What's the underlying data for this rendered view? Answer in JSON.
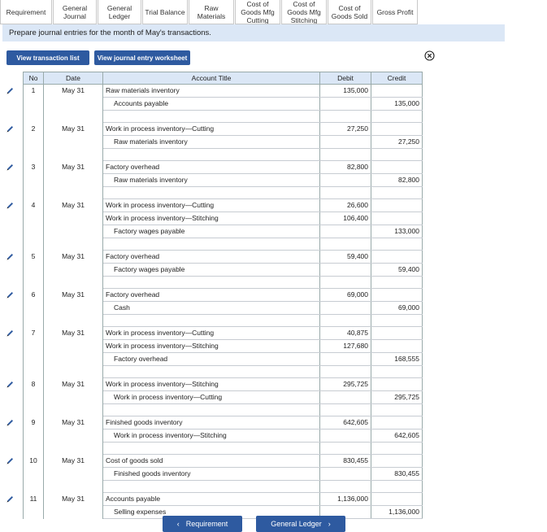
{
  "tabs": [
    {
      "label": "Requirement"
    },
    {
      "label": "General\nJournal"
    },
    {
      "label": "General\nLedger"
    },
    {
      "label": "Trial Balance"
    },
    {
      "label": "Raw\nMaterials"
    },
    {
      "label": "Cost of\nGoods Mfg\nCutting"
    },
    {
      "label": "Cost of\nGoods Mfg\nStitching"
    },
    {
      "label": "Cost of\nGoods Sold"
    },
    {
      "label": "Gross Profit"
    }
  ],
  "instruction": "Prepare journal entries for the month of May's transactions.",
  "buttons": {
    "view_transaction_list": "View transaction list",
    "view_journal_worksheet": "View journal entry worksheet"
  },
  "table": {
    "headers": {
      "no": "No",
      "date": "Date",
      "account": "Account Title",
      "debit": "Debit",
      "credit": "Credit"
    },
    "entries": [
      {
        "no": "1",
        "date": "May 31",
        "lines": [
          {
            "account": "Raw materials inventory",
            "debit": "135,000",
            "credit": "",
            "indent": false
          },
          {
            "account": "Accounts payable",
            "debit": "",
            "credit": "135,000",
            "indent": true
          }
        ]
      },
      {
        "no": "2",
        "date": "May 31",
        "lines": [
          {
            "account": "Work in process inventory—Cutting",
            "debit": "27,250",
            "credit": "",
            "indent": false
          },
          {
            "account": "Raw materials inventory",
            "debit": "",
            "credit": "27,250",
            "indent": true
          }
        ]
      },
      {
        "no": "3",
        "date": "May 31",
        "lines": [
          {
            "account": "Factory overhead",
            "debit": "82,800",
            "credit": "",
            "indent": false
          },
          {
            "account": "Raw materials inventory",
            "debit": "",
            "credit": "82,800",
            "indent": true
          }
        ]
      },
      {
        "no": "4",
        "date": "May 31",
        "lines": [
          {
            "account": "Work in process inventory—Cutting",
            "debit": "26,600",
            "credit": "",
            "indent": false
          },
          {
            "account": "Work in process inventory—Stitching",
            "debit": "106,400",
            "credit": "",
            "indent": false
          },
          {
            "account": "Factory wages payable",
            "debit": "",
            "credit": "133,000",
            "indent": true
          }
        ]
      },
      {
        "no": "5",
        "date": "May 31",
        "lines": [
          {
            "account": "Factory overhead",
            "debit": "59,400",
            "credit": "",
            "indent": false
          },
          {
            "account": "Factory wages payable",
            "debit": "",
            "credit": "59,400",
            "indent": true
          }
        ]
      },
      {
        "no": "6",
        "date": "May 31",
        "lines": [
          {
            "account": "Factory overhead",
            "debit": "69,000",
            "credit": "",
            "indent": false
          },
          {
            "account": "Cash",
            "debit": "",
            "credit": "69,000",
            "indent": true
          }
        ]
      },
      {
        "no": "7",
        "date": "May 31",
        "lines": [
          {
            "account": "Work in process inventory—Cutting",
            "debit": "40,875",
            "credit": "",
            "indent": false
          },
          {
            "account": "Work in process inventory—Stitching",
            "debit": "127,680",
            "credit": "",
            "indent": false
          },
          {
            "account": "Factory overhead",
            "debit": "",
            "credit": "168,555",
            "indent": true
          }
        ]
      },
      {
        "no": "8",
        "date": "May 31",
        "lines": [
          {
            "account": "Work in process inventory—Stitching",
            "debit": "295,725",
            "credit": "",
            "indent": false
          },
          {
            "account": "Work in process inventory—Cutting",
            "debit": "",
            "credit": "295,725",
            "indent": true
          }
        ]
      },
      {
        "no": "9",
        "date": "May 31",
        "lines": [
          {
            "account": "Finished goods inventory",
            "debit": "642,605",
            "credit": "",
            "indent": false
          },
          {
            "account": "Work in process inventory—Stitching",
            "debit": "",
            "credit": "642,605",
            "indent": true
          }
        ]
      },
      {
        "no": "10",
        "date": "May 31",
        "lines": [
          {
            "account": "Cost of goods sold",
            "debit": "830,455",
            "credit": "",
            "indent": false
          },
          {
            "account": "Finished goods inventory",
            "debit": "",
            "credit": "830,455",
            "indent": true
          }
        ]
      },
      {
        "no": "11",
        "date": "May 31",
        "lines": [
          {
            "account": "Accounts payable",
            "debit": "1,136,000",
            "credit": "",
            "indent": false
          },
          {
            "account": "Selling expenses",
            "debit": "",
            "credit": "1,136,000",
            "indent": true
          }
        ]
      }
    ]
  },
  "nav": {
    "prev": "Requirement",
    "next": "General Ledger"
  },
  "colors": {
    "accent": "#2e5aa0",
    "banner": "#dbe7f6",
    "pencil": "#2e5aa0"
  }
}
